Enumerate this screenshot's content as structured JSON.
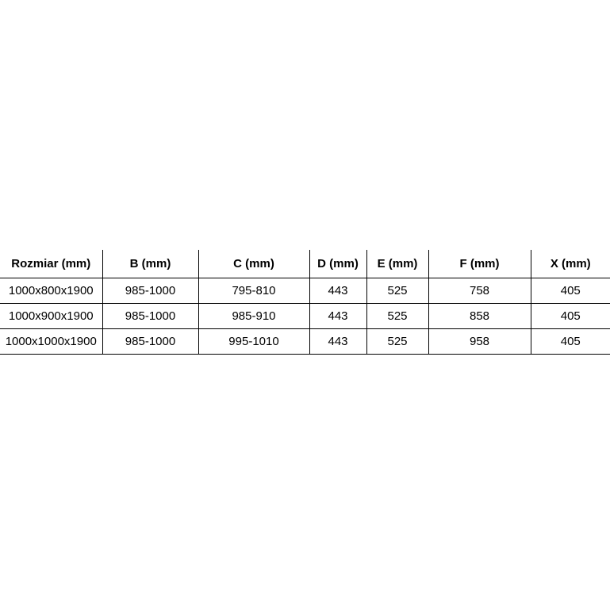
{
  "colors": {
    "background": "#ffffff",
    "border": "#000000",
    "text": "#000000"
  },
  "table": {
    "headers": [
      "Rozmiar (mm)",
      "B (mm)",
      "C (mm)",
      "D (mm)",
      "E (mm)",
      "F (mm)",
      "X (mm)"
    ],
    "rows": [
      [
        "1000x800x1900",
        "985-1000",
        "795-810",
        "443",
        "525",
        "758",
        "405"
      ],
      [
        "1000x900x1900",
        "985-1000",
        "985-910",
        "443",
        "525",
        "858",
        "405"
      ],
      [
        "1000x1000x1900",
        "985-1000",
        "995-1010",
        "443",
        "525",
        "958",
        "405"
      ]
    ]
  }
}
